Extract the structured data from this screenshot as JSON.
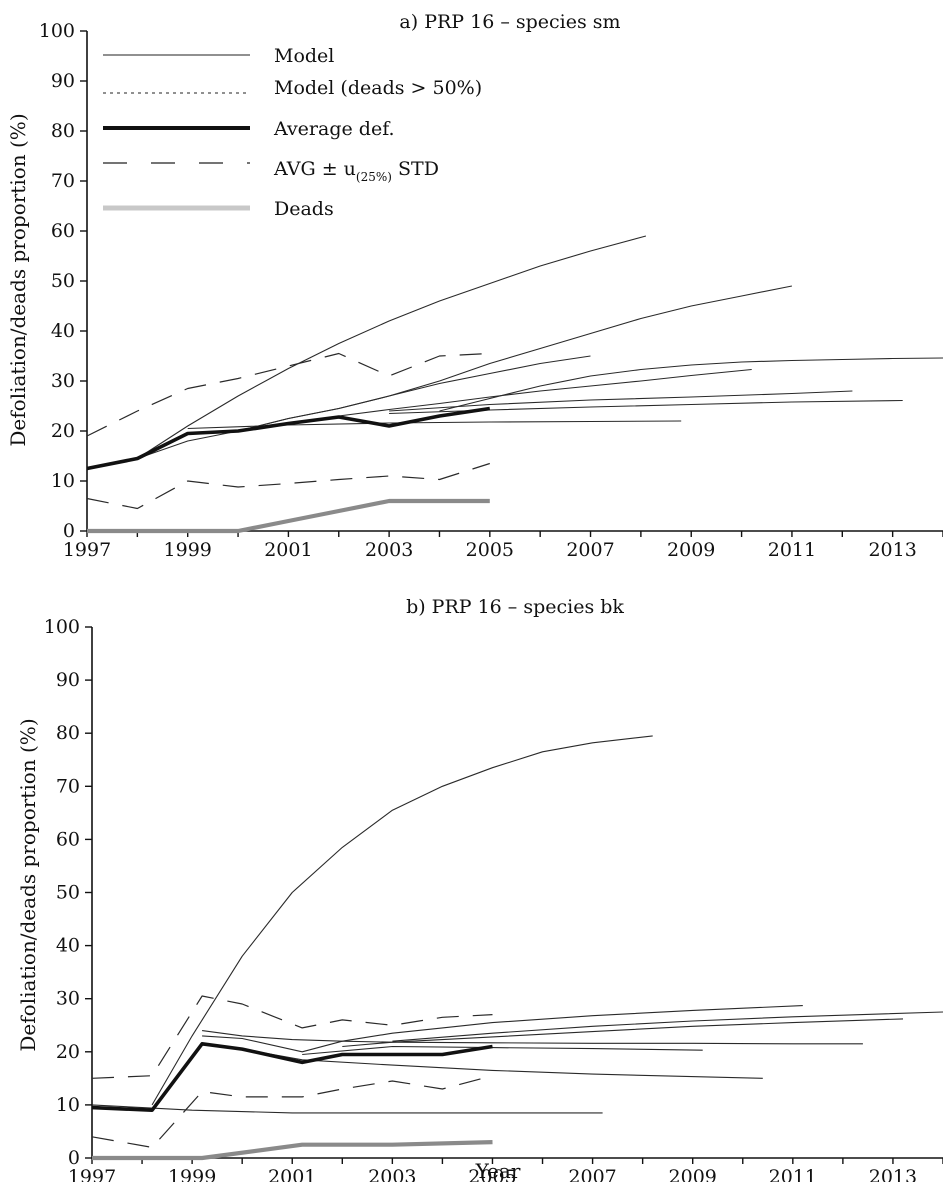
{
  "chart_data": [
    {
      "type": "line",
      "title": "a) PRP 16 – species sm",
      "xlabel": "",
      "ylabel": "Defoliation/deads proportion (%)",
      "xlim": [
        1997,
        2014
      ],
      "ylim": [
        0,
        100
      ],
      "x_ticks": [
        "1997",
        "1999",
        "2001",
        "2003",
        "2005",
        "2007",
        "2009",
        "2011",
        "2013"
      ],
      "y_ticks": [
        "0",
        "10",
        "20",
        "30",
        "40",
        "50",
        "60",
        "70",
        "80",
        "90",
        "100"
      ],
      "legend": {
        "placement": "top-left",
        "entries": [
          {
            "label": "Model",
            "style": "thin-solid"
          },
          {
            "label": "Model (deads > 50%)",
            "style": "dotted"
          },
          {
            "label": "Average def.",
            "style": "thick-solid"
          },
          {
            "label": "AVG ± u",
            "sub": "(25%)",
            "after": " STD",
            "style": "dashed"
          },
          {
            "label": "Deads",
            "style": "gray-thick"
          }
        ]
      },
      "series": [
        {
          "role": "model",
          "x": [
            1998,
            1999,
            2000,
            2001,
            2002,
            2003,
            2004,
            2005,
            2006,
            2007,
            2008.1
          ],
          "y": [
            14.5,
            21,
            27,
            32.5,
            37.5,
            42,
            46,
            49.5,
            53,
            56,
            59
          ]
        },
        {
          "role": "model",
          "x": [
            1998,
            1999,
            2000,
            2001,
            2002,
            2003,
            2004,
            2005,
            2006,
            2007,
            2008,
            2009,
            2010,
            2011
          ],
          "y": [
            14.5,
            18,
            20,
            22.5,
            24.5,
            27,
            30,
            33.5,
            36.5,
            39.5,
            42.5,
            45,
            47,
            49
          ]
        },
        {
          "role": "model",
          "x": [
            2000,
            2001,
            2002,
            2003,
            2004,
            2005,
            2006,
            2007
          ],
          "y": [
            20,
            22.5,
            24.5,
            27,
            29.5,
            31.5,
            33.5,
            35
          ]
        },
        {
          "role": "model",
          "x": [
            2004,
            2005,
            2006,
            2007,
            2008,
            2009,
            2010,
            2011,
            2012,
            2013,
            2014
          ],
          "y": [
            24,
            26.5,
            29,
            31,
            32.3,
            33.2,
            33.8,
            34.1,
            34.3,
            34.5,
            34.6
          ]
        },
        {
          "role": "model",
          "x": [
            2002,
            2003,
            2004,
            2005,
            2006,
            2007,
            2008,
            2009,
            2010.2
          ],
          "y": [
            23,
            24.3,
            25.5,
            26.8,
            28,
            29,
            30,
            31.1,
            32.3
          ]
        },
        {
          "role": "model",
          "x": [
            2003,
            2005,
            2007,
            2009,
            2011,
            2012.2
          ],
          "y": [
            24,
            25.3,
            26.2,
            26.8,
            27.5,
            28
          ]
        },
        {
          "role": "model",
          "x": [
            2003,
            2005,
            2007,
            2009,
            2011,
            2013.2
          ],
          "y": [
            23.5,
            24.2,
            24.8,
            25.3,
            25.8,
            26.1
          ]
        },
        {
          "role": "model",
          "x": [
            1999,
            2001,
            2003,
            2005,
            2007,
            2008.8
          ],
          "y": [
            20.5,
            21.2,
            21.6,
            21.8,
            21.9,
            22
          ]
        },
        {
          "role": "average",
          "x": [
            1997,
            1998,
            1999,
            2000,
            2001,
            2002,
            2003,
            2004,
            2005
          ],
          "y": [
            12.5,
            14.5,
            19.5,
            20,
            21.5,
            22.8,
            21,
            23,
            24.5
          ]
        },
        {
          "role": "avg_upper",
          "x": [
            1997,
            1998,
            1999,
            2000,
            2001,
            2002,
            2003,
            2004,
            2005
          ],
          "y": [
            19,
            24,
            28.5,
            30.5,
            33,
            35.5,
            31,
            35,
            35.5
          ]
        },
        {
          "role": "avg_lower",
          "x": [
            1997,
            1998,
            1999,
            2000,
            2001,
            2002,
            2003,
            2004,
            2005
          ],
          "y": [
            6.5,
            4.5,
            10,
            8.8,
            9.5,
            10.3,
            11,
            10.3,
            13.5
          ]
        },
        {
          "role": "deads",
          "x": [
            1997,
            1998,
            1999,
            2000,
            2001,
            2002,
            2003,
            2004,
            2005
          ],
          "y": [
            0,
            0,
            0,
            0,
            2,
            4,
            6,
            6,
            6
          ]
        }
      ]
    },
    {
      "type": "line",
      "title": "b) PRP 16 – species bk",
      "xlabel": "Year",
      "ylabel": "Defoliation/deads proportion (%)",
      "xlim": [
        1997,
        2014
      ],
      "ylim": [
        0,
        100
      ],
      "x_ticks": [
        "1997",
        "1999",
        "2001",
        "2003",
        "2005",
        "2007",
        "2009",
        "2011",
        "2013"
      ],
      "y_ticks": [
        "0",
        "10",
        "20",
        "30",
        "40",
        "50",
        "60",
        "70",
        "80",
        "90",
        "100"
      ],
      "series": [
        {
          "role": "model",
          "x": [
            1998.2,
            1999,
            2000,
            2001,
            2002,
            2003,
            2004,
            2005,
            2006,
            2007,
            2008.2
          ],
          "y": [
            10,
            23,
            38,
            50,
            58.5,
            65.5,
            70,
            73.5,
            76.5,
            78.2,
            79.5
          ]
        },
        {
          "role": "model",
          "x": [
            1997,
            1998,
            1999,
            2001,
            2003,
            2005,
            2007.2
          ],
          "y": [
            10,
            9.5,
            9,
            8.5,
            8.5,
            8.5,
            8.5
          ]
        },
        {
          "role": "model",
          "x": [
            1999.2,
            2000,
            2001.2,
            2003,
            2005,
            2007,
            2010.4
          ],
          "y": [
            21.5,
            20.5,
            18.5,
            17.5,
            16.5,
            15.8,
            15
          ]
        },
        {
          "role": "model",
          "x": [
            2001.2,
            2003,
            2005,
            2007,
            2009.2
          ],
          "y": [
            19.5,
            21,
            20.8,
            20.6,
            20.3
          ]
        },
        {
          "role": "model",
          "x": [
            1999.2,
            2000,
            2001,
            2002,
            2003,
            2005,
            2007,
            2009,
            2011,
            2012.4
          ],
          "y": [
            24,
            23,
            22.3,
            22,
            21.8,
            21.7,
            21.6,
            21.6,
            21.5,
            21.5
          ]
        },
        {
          "role": "model",
          "x": [
            1999.2,
            2000,
            2001.2,
            2002,
            2003,
            2004,
            2005,
            2007,
            2009,
            2011.2
          ],
          "y": [
            23,
            22.5,
            20,
            22,
            23.5,
            24.5,
            25.5,
            26.8,
            27.8,
            28.7
          ]
        },
        {
          "role": "model",
          "x": [
            2002,
            2003,
            2005,
            2007,
            2009,
            2011,
            2013.2
          ],
          "y": [
            21,
            21.8,
            22.8,
            23.8,
            24.8,
            25.5,
            26.2
          ]
        },
        {
          "role": "model",
          "x": [
            2003,
            2005,
            2007,
            2009,
            2011,
            2014
          ],
          "y": [
            22,
            23.5,
            24.8,
            25.8,
            26.6,
            27.5
          ]
        },
        {
          "role": "average",
          "x": [
            1997,
            1998.2,
            1999.2,
            2000,
            2001.2,
            2002,
            2003,
            2004,
            2005
          ],
          "y": [
            9.5,
            9,
            21.5,
            20.5,
            18,
            19.5,
            19.5,
            19.5,
            21
          ]
        },
        {
          "role": "avg_upper",
          "x": [
            1997,
            1998.2,
            1999.2,
            2000,
            2001.2,
            2002,
            2003,
            2004,
            2005
          ],
          "y": [
            15,
            15.5,
            30.5,
            29,
            24.5,
            26,
            25,
            26.5,
            27
          ]
        },
        {
          "role": "avg_lower",
          "x": [
            1997,
            1998.2,
            1999.2,
            2000,
            2001.2,
            2002,
            2003,
            2004,
            2005
          ],
          "y": [
            4,
            2,
            12.5,
            11.5,
            11.5,
            13,
            14.5,
            13,
            15.5
          ]
        },
        {
          "role": "deads",
          "x": [
            1997,
            1999.2,
            2001.2,
            2003,
            2005
          ],
          "y": [
            0,
            0,
            2.5,
            2.5,
            3
          ]
        }
      ]
    }
  ]
}
